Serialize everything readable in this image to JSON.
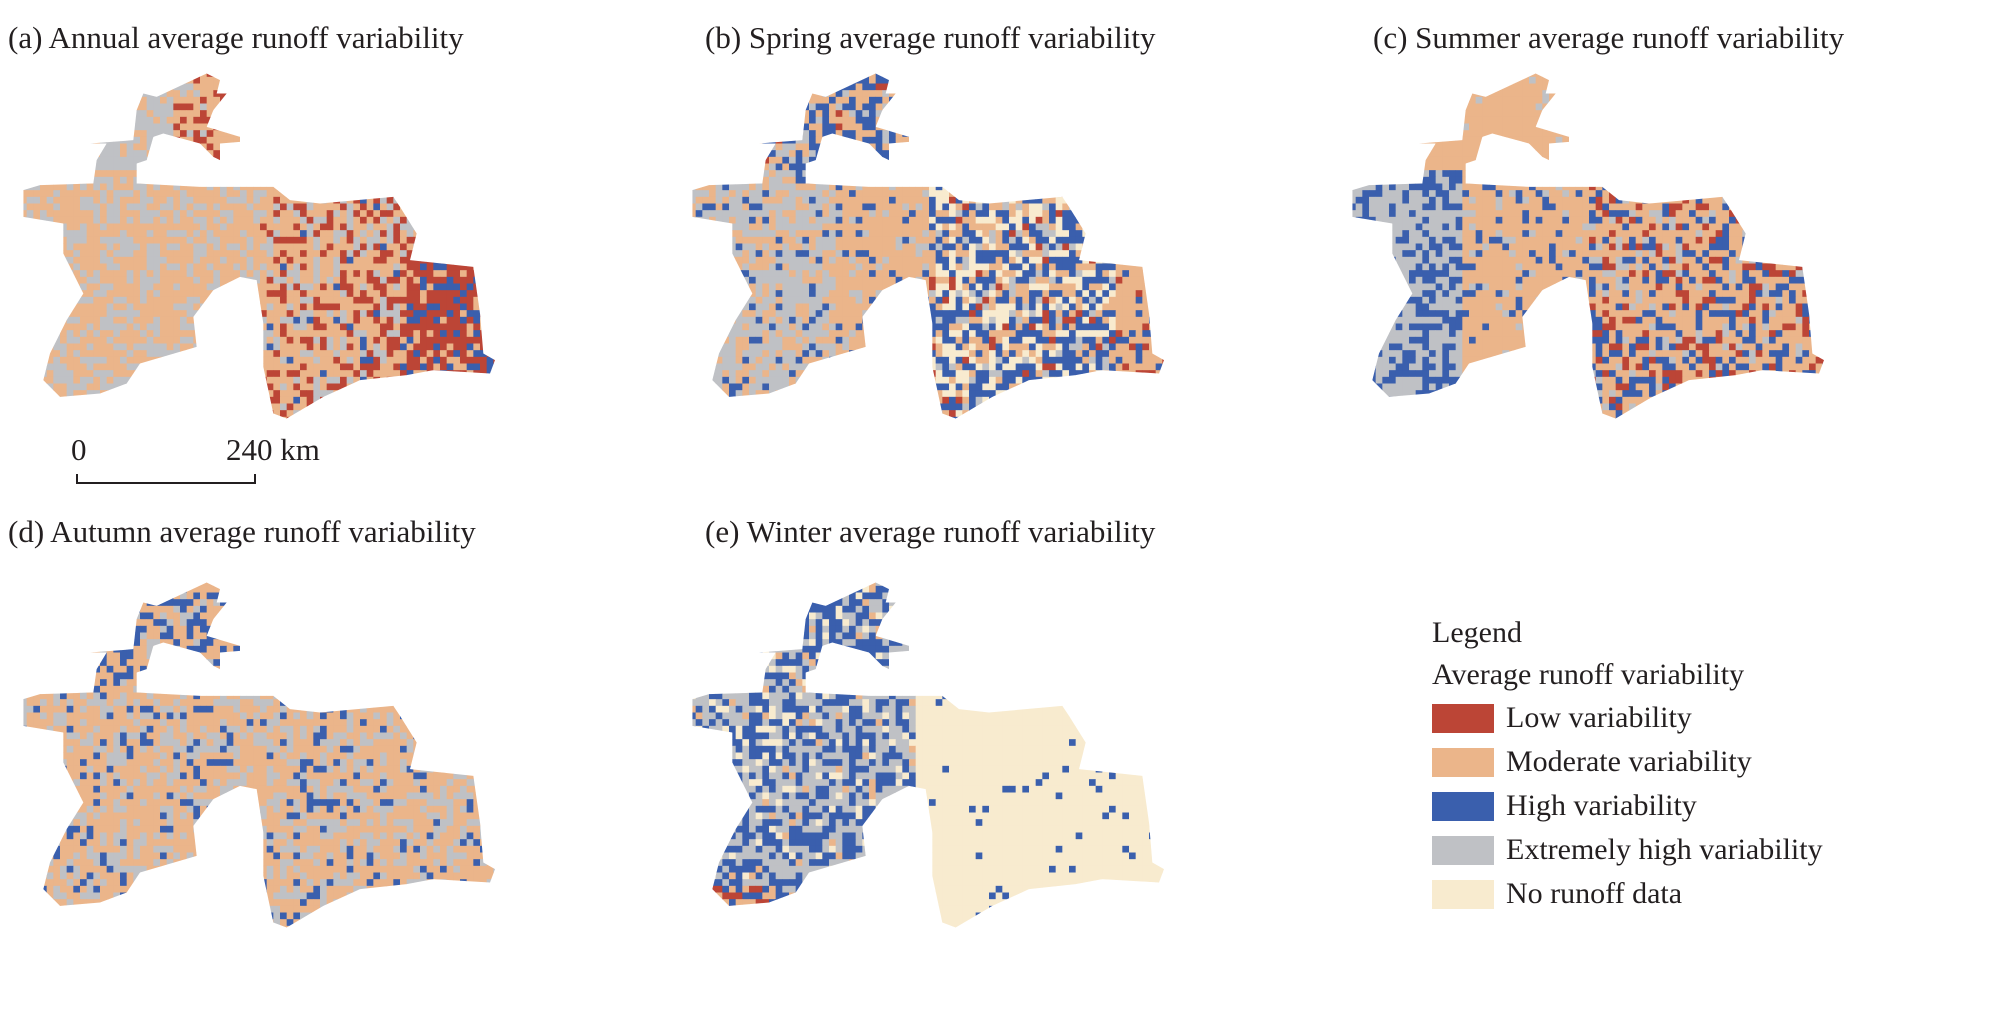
{
  "panels": [
    {
      "id": "a",
      "title": "(a) Annual average runoff variability"
    },
    {
      "id": "b",
      "title": "(b) Spring average runoff variability"
    },
    {
      "id": "c",
      "title": "(c) Summer average runoff variability"
    },
    {
      "id": "d",
      "title": "(d) Autumn average runoff variability"
    },
    {
      "id": "e",
      "title": "(e) Winter average runoff variability"
    }
  ],
  "scale_bar": {
    "start": "0",
    "end": "240 km"
  },
  "legend": {
    "title": "Legend",
    "subtitle": "Average runoff variability",
    "items": [
      {
        "key": "low",
        "label": "Low variability",
        "color": "#bc4536"
      },
      {
        "key": "moderate",
        "label": "Moderate variability",
        "color": "#ebb58a"
      },
      {
        "key": "high",
        "label": "High variability",
        "color": "#3a5fad"
      },
      {
        "key": "extreme",
        "label": "Extremely high variability",
        "color": "#bfc1c5"
      },
      {
        "key": "nodata",
        "label": "No runoff data",
        "color": "#f8ebcf"
      }
    ]
  }
}
